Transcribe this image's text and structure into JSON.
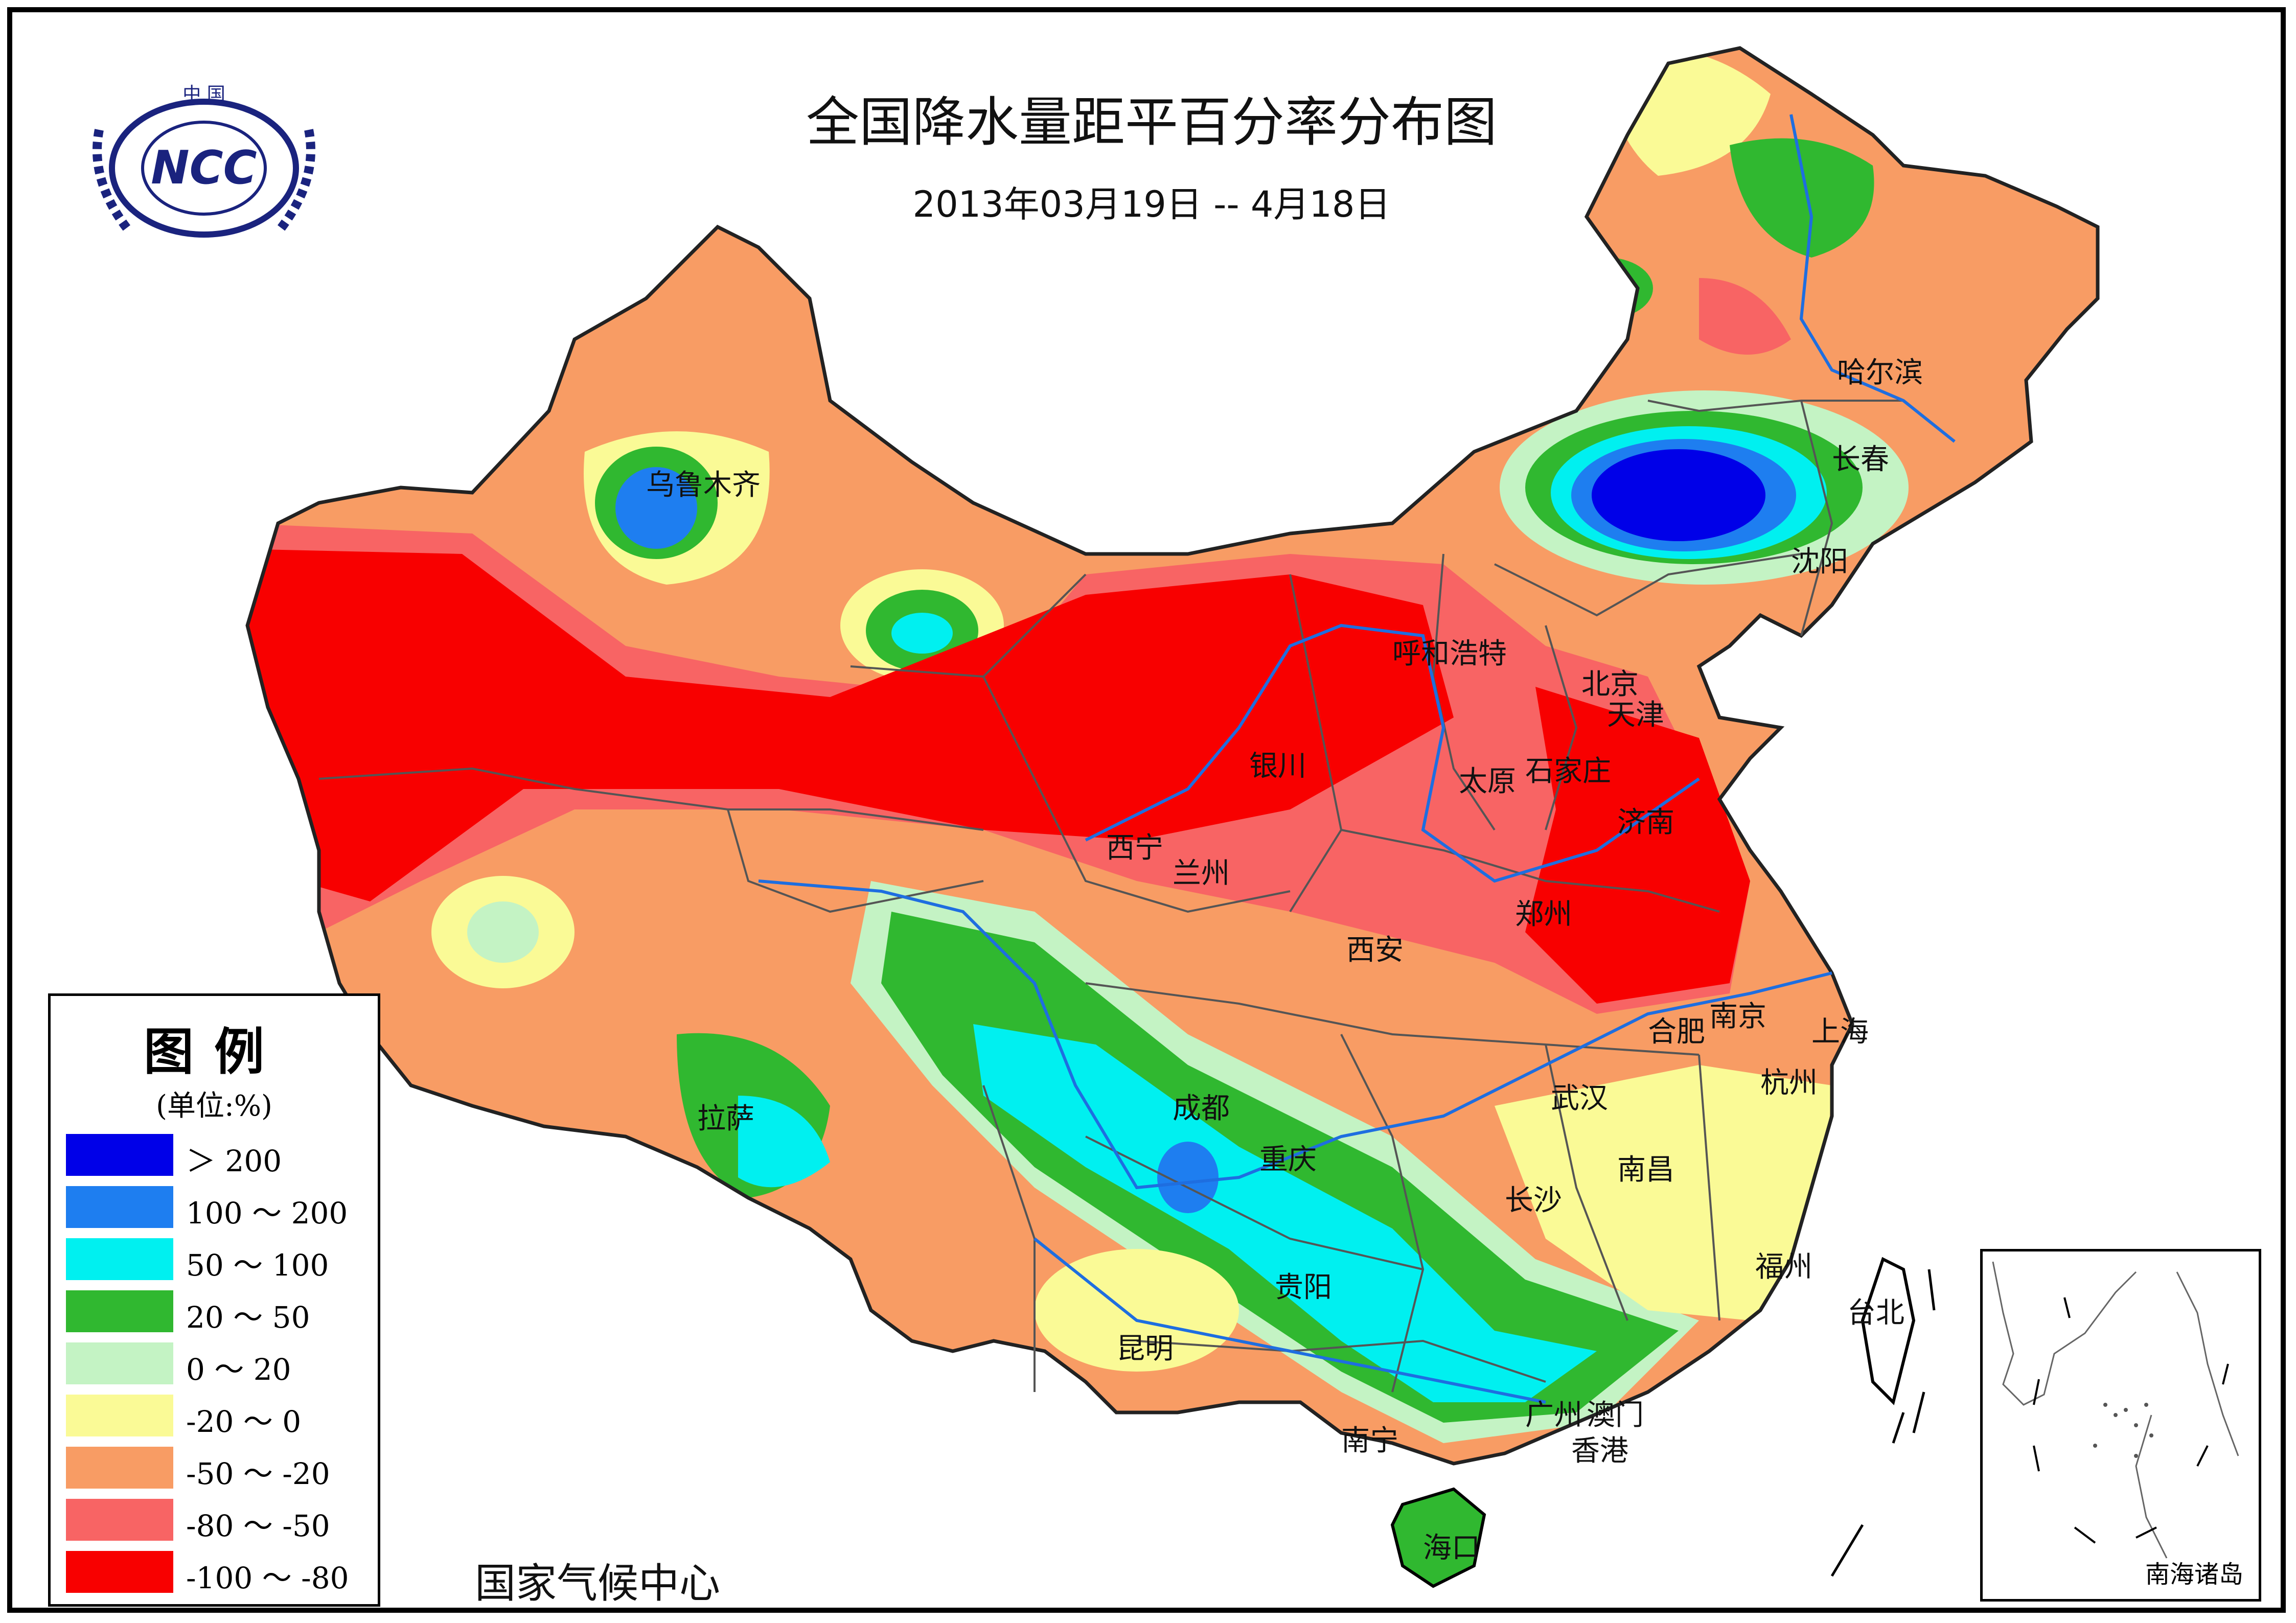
{
  "map": {
    "title": "全国降水量距平百分率分布图",
    "subtitle": "2013年03月19日 -- 4月18日",
    "footer": "国家气候中心",
    "inset_label": "南海诸岛",
    "logo": {
      "top_text": "中 国",
      "center_text": "NCC"
    }
  },
  "legend": {
    "title": "图例",
    "unit": "(单位:%)",
    "items": [
      {
        "label": "＞ 200",
        "color": "#0000e8"
      },
      {
        "label": "100 ～ 200",
        "color": "#1e7ef0"
      },
      {
        "label": "50 ～ 100",
        "color": "#00f0f0"
      },
      {
        "label": "20 ～ 50",
        "color": "#30b830"
      },
      {
        "label": "0 ～ 20",
        "color": "#c4f3c4"
      },
      {
        "label": "-20 ～ 0",
        "color": "#fafa96"
      },
      {
        "label": "-50 ～ -20",
        "color": "#f89c64"
      },
      {
        "label": "-80 ～ -50",
        "color": "#f86464"
      },
      {
        "label": "-100 ～ -80",
        "color": "#f80000"
      }
    ]
  },
  "cities": [
    {
      "name": "乌鲁木齐"
    },
    {
      "name": "哈尔滨"
    },
    {
      "name": "长春"
    },
    {
      "name": "沈阳"
    },
    {
      "name": "呼和浩特"
    },
    {
      "name": "北京"
    },
    {
      "name": "天津"
    },
    {
      "name": "银川"
    },
    {
      "name": "太原"
    },
    {
      "name": "石家庄"
    },
    {
      "name": "济南"
    },
    {
      "name": "西宁"
    },
    {
      "name": "兰州"
    },
    {
      "name": "郑州"
    },
    {
      "name": "西安"
    },
    {
      "name": "合肥"
    },
    {
      "name": "南京"
    },
    {
      "name": "上海"
    },
    {
      "name": "拉萨"
    },
    {
      "name": "成都"
    },
    {
      "name": "武汉"
    },
    {
      "name": "杭州"
    },
    {
      "name": "重庆"
    },
    {
      "name": "南昌"
    },
    {
      "name": "长沙"
    },
    {
      "name": "福州"
    },
    {
      "name": "贵阳"
    },
    {
      "name": "昆明"
    },
    {
      "name": "台北"
    },
    {
      "name": "广州"
    },
    {
      "name": "澳门"
    },
    {
      "name": "香港"
    },
    {
      "name": "南宁"
    },
    {
      "name": "海口"
    }
  ]
}
